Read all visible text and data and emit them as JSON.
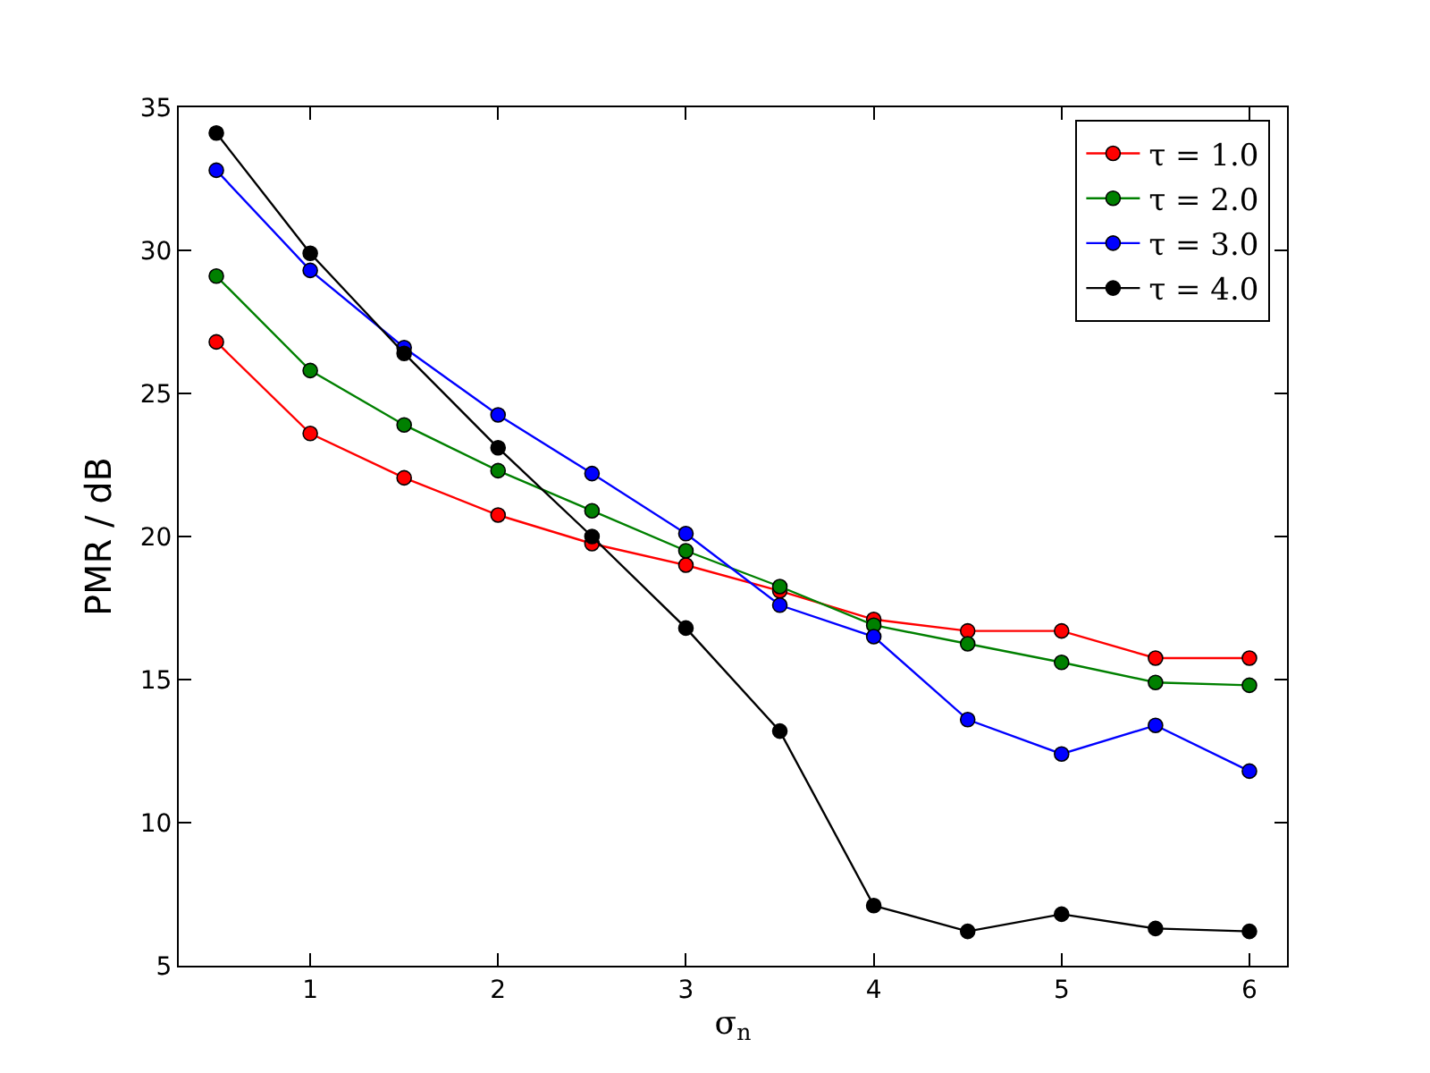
{
  "chart_data": {
    "type": "line",
    "xlabel": "σ$_{n}$",
    "ylabel": "PMR / dB",
    "x": [
      0.5,
      1,
      1.5,
      2,
      2.5,
      3,
      3.5,
      4,
      4.5,
      5,
      5.5,
      6
    ],
    "series": [
      {
        "name": "τ = 1.0",
        "color": "#ff0000",
        "values": [
          26.8,
          23.6,
          22.05,
          20.75,
          19.75,
          19.0,
          18.1,
          17.1,
          16.7,
          16.7,
          15.75,
          15.75
        ]
      },
      {
        "name": "τ = 2.0",
        "color": "#008000",
        "values": [
          29.1,
          25.8,
          23.9,
          22.3,
          20.9,
          19.5,
          18.25,
          16.9,
          16.25,
          15.6,
          14.9,
          14.8
        ]
      },
      {
        "name": "τ = 3.0",
        "color": "#0000ff",
        "values": [
          32.8,
          29.3,
          26.6,
          24.25,
          22.2,
          20.1,
          17.6,
          16.5,
          13.6,
          12.4,
          13.4,
          11.8
        ]
      },
      {
        "name": "τ = 4.0",
        "color": "#000000",
        "values": [
          34.1,
          29.9,
          26.4,
          23.1,
          20.0,
          16.8,
          13.2,
          7.1,
          6.2,
          6.8,
          6.3,
          6.2
        ]
      }
    ],
    "xlim": [
      0.3,
      6.2
    ],
    "xticks": [
      1,
      2,
      3,
      4,
      5,
      6
    ],
    "ylim": [
      5,
      35
    ],
    "yticks": [
      5,
      10,
      15,
      20,
      25,
      30,
      35
    ],
    "legend": "top right",
    "marker": "circle",
    "line_style": "solid"
  }
}
